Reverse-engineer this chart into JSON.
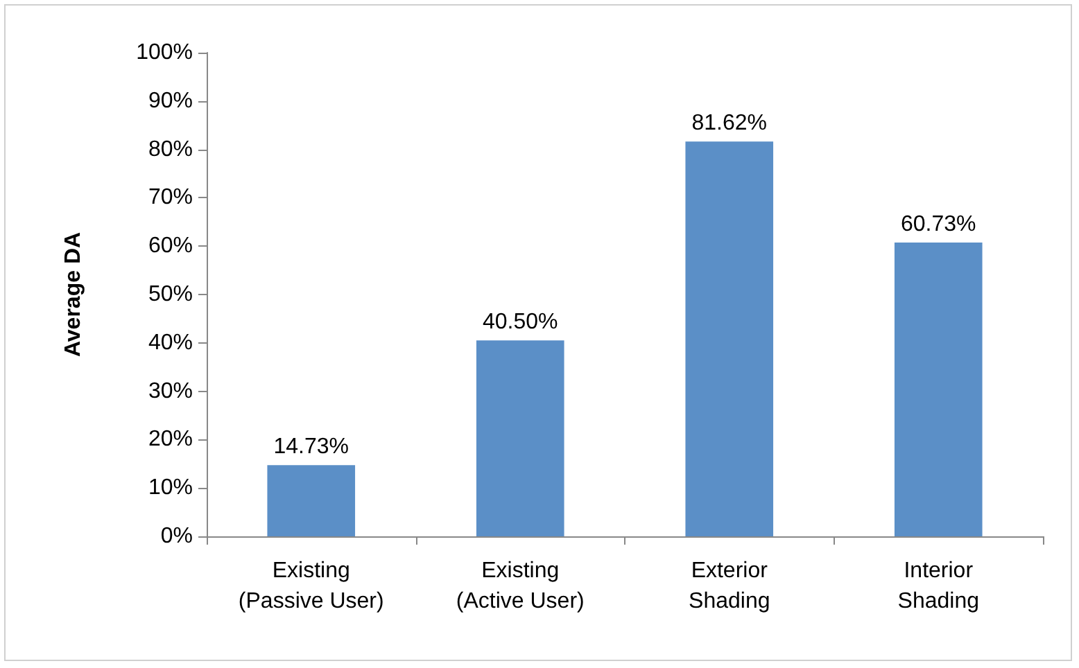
{
  "chart_data": {
    "type": "bar",
    "ylabel": "Average DA",
    "categories": [
      "Existing\n(Passive User)",
      "Existing\n(Active User)",
      "Exterior\nShading",
      "Interior\nShading"
    ],
    "values": [
      14.73,
      40.5,
      81.62,
      60.73
    ],
    "value_labels": [
      "14.73%",
      "40.50%",
      "81.62%",
      "60.73%"
    ],
    "color": "#5b8fc7",
    "ylim": [
      0,
      100
    ],
    "yticks": [
      {
        "value": 0,
        "label": "0%"
      },
      {
        "value": 10,
        "label": "10%"
      },
      {
        "value": 20,
        "label": "20%"
      },
      {
        "value": 30,
        "label": "30%"
      },
      {
        "value": 40,
        "label": "40%"
      },
      {
        "value": 50,
        "label": "50%"
      },
      {
        "value": 60,
        "label": "60%"
      },
      {
        "value": 70,
        "label": "70%"
      },
      {
        "value": 80,
        "label": "80%"
      },
      {
        "value": 90,
        "label": "90%"
      },
      {
        "value": 100,
        "label": "100%"
      }
    ],
    "grid": false
  }
}
